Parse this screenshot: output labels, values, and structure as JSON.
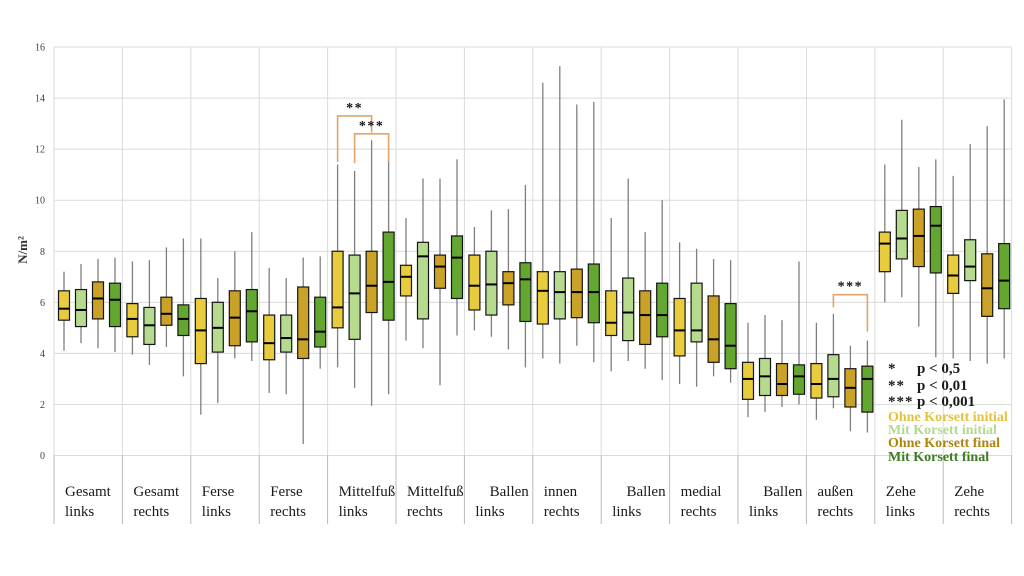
{
  "chart": {
    "y_axis_title": "N/m²",
    "legend": {
      "sig": [
        {
          "stars": "*",
          "label": "p < 0,5"
        },
        {
          "stars": "**",
          "label": "p < 0,01"
        },
        {
          "stars": "***",
          "label": "p < 0,001"
        }
      ],
      "series": [
        {
          "label": "Ohne Korsett initial",
          "color": "#e2c33a"
        },
        {
          "label": "Mit Korsett initial",
          "color": "#b5d88d"
        },
        {
          "label": "Ohne Korsett final",
          "color": "#ad850e"
        },
        {
          "label": "Mit Korsett final",
          "color": "#3c7d1f"
        }
      ]
    }
  },
  "chart_data": {
    "type": "boxplot",
    "title": "",
    "ylabel": "N/m²",
    "ylim": [
      0,
      16
    ],
    "yticks": [
      0,
      2,
      4,
      6,
      8,
      10,
      12,
      14,
      16
    ],
    "grid": "horizontal gridlines every 2 units plus vertical category separators",
    "legend_position": "bottom-right, colored text lines, no swatches",
    "series_names": [
      "Ohne Korsett initial",
      "Mit Korsett initial",
      "Ohne Korsett final",
      "Mit Korsett final"
    ],
    "series_colors": [
      "#e9cb3e",
      "#b6db8e",
      "#c9a227",
      "#63a630"
    ],
    "box_order_note": "values per box: [whisker_low, q1, median, q3, whisker_high] in N/m²",
    "categories": [
      {
        "line1": "Gesamt",
        "line2": "links",
        "line1_align": "left"
      },
      {
        "line1": "Gesamt",
        "line2": "rechts",
        "line1_align": "left"
      },
      {
        "line1": "Ferse",
        "line2": "links",
        "line1_align": "left"
      },
      {
        "line1": "Ferse",
        "line2": "rechts",
        "line1_align": "left"
      },
      {
        "line1": "Mittelfuß",
        "line2": "links",
        "line1_align": "left"
      },
      {
        "line1": "Mittelfuß",
        "line2": "rechts",
        "line1_align": "left"
      },
      {
        "line1": "Ballen",
        "line2": "links",
        "line1_align": "right"
      },
      {
        "line1": "innen",
        "line2": "rechts",
        "line1_align": "left"
      },
      {
        "line1": "Ballen",
        "line2": "links",
        "line1_align": "right"
      },
      {
        "line1": "medial",
        "line2": "rechts",
        "line1_align": "left"
      },
      {
        "line1": "Ballen",
        "line2": "links",
        "line1_align": "right"
      },
      {
        "line1": "außen",
        "line2": "rechts",
        "line1_align": "left"
      },
      {
        "line1": "Zehe",
        "line2": "links",
        "line1_align": "left"
      },
      {
        "line1": "Zehe",
        "line2": "rechts",
        "line1_align": "left"
      }
    ],
    "boxes": [
      [
        [
          4.1,
          5.3,
          5.75,
          6.45,
          7.2
        ],
        [
          4.4,
          5.05,
          5.7,
          6.5,
          7.5
        ],
        [
          4.2,
          5.35,
          6.15,
          6.8,
          7.7
        ],
        [
          4.05,
          5.05,
          6.1,
          6.75,
          7.75
        ]
      ],
      [
        [
          3.95,
          4.65,
          5.35,
          5.95,
          7.6
        ],
        [
          3.55,
          4.35,
          5.1,
          5.8,
          7.65
        ],
        [
          4.25,
          5.1,
          5.55,
          6.2,
          8.15
        ],
        [
          3.1,
          4.7,
          5.35,
          5.9,
          8.5
        ]
      ],
      [
        [
          1.6,
          3.6,
          4.9,
          6.15,
          8.5
        ],
        [
          2.05,
          4.05,
          5.0,
          6.0,
          6.95
        ],
        [
          3.8,
          4.3,
          5.4,
          6.45,
          8.0
        ],
        [
          3.7,
          4.45,
          5.65,
          6.5,
          8.75
        ]
      ],
      [
        [
          2.45,
          3.75,
          4.4,
          5.5,
          7.35
        ],
        [
          2.4,
          4.05,
          4.6,
          5.5,
          6.95
        ],
        [
          0.45,
          3.8,
          4.55,
          6.6,
          7.75
        ],
        [
          3.4,
          4.25,
          4.85,
          6.2,
          7.8
        ]
      ],
      [
        [
          3.45,
          5.0,
          5.8,
          8.0,
          11.4
        ],
        [
          2.65,
          4.55,
          6.35,
          7.85,
          11.15
        ],
        [
          1.95,
          5.6,
          6.65,
          8.0,
          12.35
        ],
        [
          2.4,
          5.3,
          6.8,
          8.75,
          11.65
        ]
      ],
      [
        [
          4.5,
          6.25,
          7.0,
          7.45,
          9.3
        ],
        [
          4.2,
          5.35,
          7.8,
          8.35,
          10.85
        ],
        [
          2.75,
          6.55,
          7.4,
          7.85,
          10.85
        ],
        [
          4.7,
          6.15,
          7.75,
          8.6,
          11.6
        ]
      ],
      [
        [
          4.9,
          5.7,
          6.65,
          7.85,
          8.95
        ],
        [
          4.65,
          5.5,
          6.7,
          8.0,
          9.6
        ],
        [
          4.15,
          5.9,
          6.75,
          7.2,
          9.65
        ],
        [
          3.45,
          5.25,
          6.9,
          7.55,
          10.6
        ]
      ],
      [
        [
          3.8,
          5.15,
          6.45,
          7.2,
          14.6
        ],
        [
          3.6,
          5.35,
          6.4,
          7.2,
          15.25
        ],
        [
          4.3,
          5.4,
          6.4,
          7.3,
          13.75
        ],
        [
          3.65,
          5.2,
          6.4,
          7.5,
          13.85
        ]
      ],
      [
        [
          3.3,
          4.7,
          5.2,
          6.45,
          9.3
        ],
        [
          3.7,
          4.5,
          5.6,
          6.95,
          10.85
        ],
        [
          3.4,
          4.35,
          5.5,
          6.45,
          8.75
        ],
        [
          2.95,
          4.65,
          5.5,
          6.75,
          10.0
        ]
      ],
      [
        [
          2.8,
          3.9,
          4.9,
          6.15,
          8.35
        ],
        [
          2.7,
          4.45,
          4.9,
          6.75,
          8.1
        ],
        [
          3.1,
          3.65,
          4.55,
          6.25,
          7.7
        ],
        [
          2.85,
          3.4,
          4.3,
          5.95,
          7.65
        ]
      ],
      [
        [
          1.5,
          2.2,
          3.0,
          3.65,
          5.2
        ],
        [
          1.7,
          2.35,
          3.1,
          3.8,
          5.5
        ],
        [
          1.9,
          2.35,
          2.8,
          3.6,
          5.3
        ],
        [
          2.0,
          2.4,
          3.1,
          3.55,
          7.6
        ]
      ],
      [
        [
          1.4,
          2.25,
          2.8,
          3.6,
          5.2
        ],
        [
          1.85,
          2.3,
          3.0,
          3.95,
          5.55
        ],
        [
          0.95,
          1.9,
          2.65,
          3.4,
          4.3
        ],
        [
          0.9,
          1.7,
          3.0,
          3.5,
          4.5
        ]
      ],
      [
        [
          6.0,
          7.2,
          8.3,
          8.75,
          11.4
        ],
        [
          6.2,
          7.7,
          8.5,
          9.6,
          13.15
        ],
        [
          5.05,
          7.4,
          8.6,
          9.65,
          11.3
        ],
        [
          3.85,
          7.15,
          9.0,
          9.75,
          11.6
        ]
      ],
      [
        [
          3.8,
          6.35,
          7.05,
          7.85,
          10.95
        ],
        [
          3.7,
          6.85,
          7.4,
          8.45,
          12.2
        ],
        [
          3.6,
          5.45,
          6.55,
          7.9,
          12.9
        ],
        [
          3.8,
          5.75,
          6.85,
          8.3,
          13.95
        ]
      ]
    ],
    "annotations": [
      {
        "type": "bracket",
        "stars": "**",
        "category": 4,
        "from_series": 0,
        "to_series": 2,
        "bar_y": 13.3,
        "left_end": 11.5,
        "right_end": 12.65,
        "color": "#e1a368"
      },
      {
        "type": "bracket",
        "stars": "***",
        "category": 4,
        "from_series": 1,
        "to_series": 3,
        "bar_y": 12.6,
        "left_end": 11.45,
        "right_end": 11.5,
        "color": "#e1a368"
      },
      {
        "type": "bracket",
        "stars": "***",
        "category": 11,
        "from_series": 1,
        "to_series": 3,
        "bar_y": 6.3,
        "left_end": 5.8,
        "right_end": 4.85,
        "color": "#e1a368"
      }
    ]
  }
}
